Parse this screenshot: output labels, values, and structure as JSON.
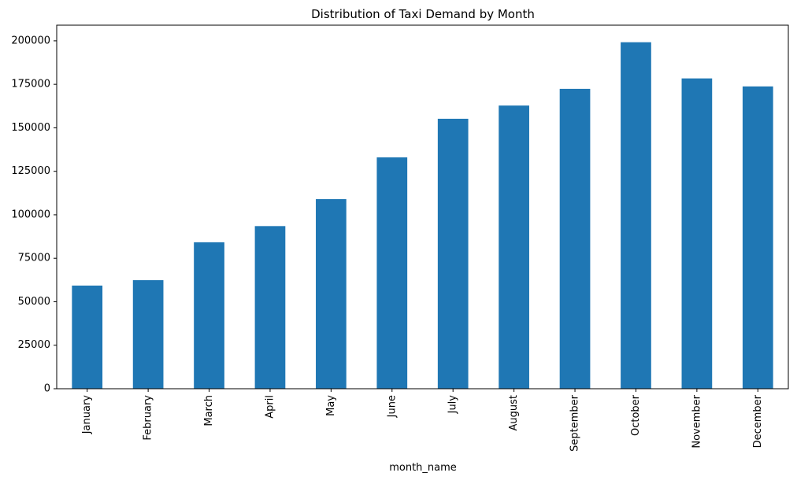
{
  "chart_data": {
    "type": "bar",
    "title": "Distribution of Taxi Demand by Month",
    "xlabel": "month_name",
    "ylabel": "",
    "categories": [
      "January",
      "February",
      "March",
      "April",
      "May",
      "June",
      "July",
      "August",
      "September",
      "October",
      "November",
      "December"
    ],
    "values": [
      59300,
      62400,
      84200,
      93500,
      109000,
      133000,
      155200,
      162800,
      172400,
      199200,
      178400,
      173800
    ],
    "ylim": [
      0,
      209000
    ],
    "yticks": [
      0,
      25000,
      50000,
      75000,
      100000,
      125000,
      150000,
      175000,
      200000
    ],
    "grid": false,
    "legend": false,
    "bar_color": "#1f77b4"
  }
}
